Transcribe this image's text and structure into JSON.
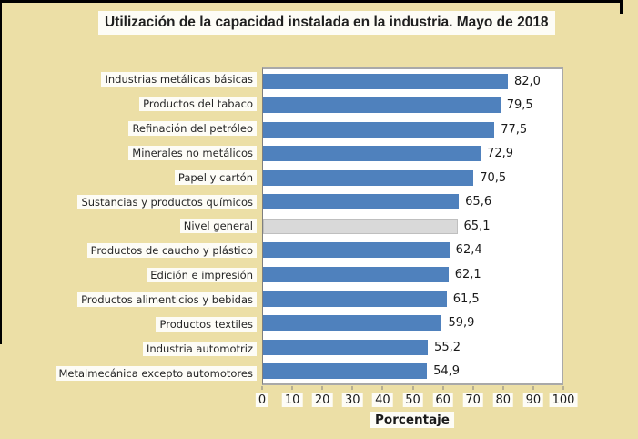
{
  "title": "Utilización de la capacidad instalada en la industria. Mayo de 2018",
  "colors": {
    "page_background": "#ecdfa6",
    "bar": "#4f81bd",
    "highlight_bar": "#d9d9d9",
    "highlight_bar_border": "#bfbfbf",
    "plot_background": "#ffffff",
    "plot_border": "#a9a9a9",
    "frame_border": "#000000",
    "text": "#1a1a1a"
  },
  "chart_data": {
    "type": "bar",
    "orientation": "horizontal",
    "title": "Utilización de la capacidad instalada en la industria. Mayo de 2018",
    "xlabel": "Porcentaje",
    "ylabel": "",
    "xlim": [
      0,
      100
    ],
    "xticks": [
      0,
      10,
      20,
      30,
      40,
      50,
      60,
      70,
      80,
      90,
      100
    ],
    "grid": false,
    "legend": null,
    "categories": [
      "Industrias metálicas básicas",
      "Productos del tabaco",
      "Refinación del petróleo",
      "Minerales no metálicos",
      "Papel y cartón",
      "Sustancias y productos químicos",
      "Nivel general",
      "Productos de caucho y plástico",
      "Edición e impresión",
      "Productos alimenticios y bebidas",
      "Productos textiles",
      "Industria automotriz",
      "Metalmecánica excepto automotores"
    ],
    "values": [
      82.0,
      79.5,
      77.5,
      72.9,
      70.5,
      65.6,
      65.1,
      62.4,
      62.1,
      61.5,
      59.9,
      55.2,
      54.9
    ],
    "value_labels": [
      "82,0",
      "79,5",
      "77,5",
      "72,9",
      "70,5",
      "65,6",
      "65,1",
      "62,4",
      "62,1",
      "61,5",
      "59,9",
      "55,2",
      "54,9"
    ],
    "highlight_index": 6
  }
}
